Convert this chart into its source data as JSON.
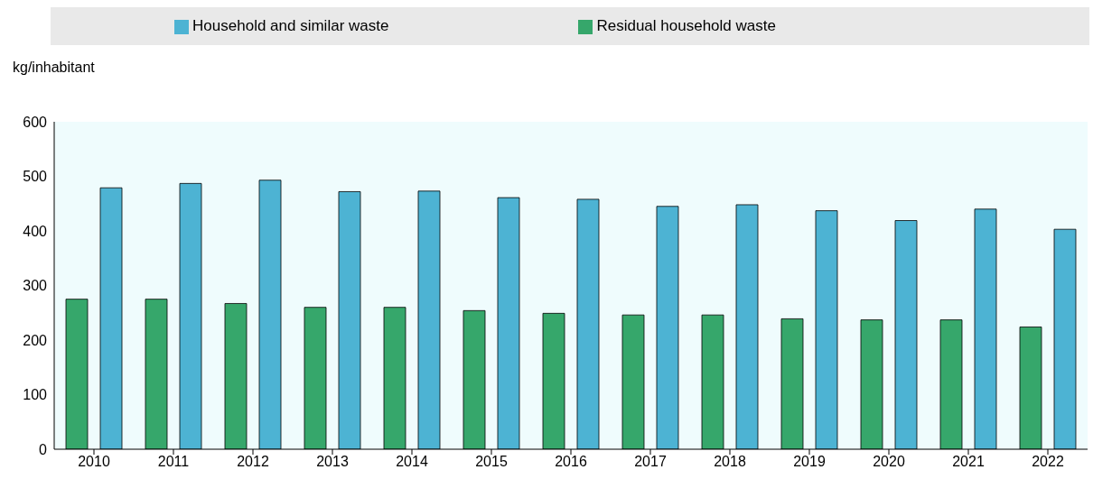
{
  "chart_data": {
    "type": "bar",
    "ylabel": "kg/inhabitant",
    "categories": [
      "2010",
      "2011",
      "2012",
      "2013",
      "2014",
      "2015",
      "2016",
      "2017",
      "2018",
      "2019",
      "2020",
      "2021",
      "2022"
    ],
    "series": [
      {
        "name": "Residual household waste",
        "color": "#36a76b",
        "values": [
          275,
          275,
          267,
          260,
          260,
          254,
          249,
          246,
          246,
          239,
          237,
          237,
          224
        ]
      },
      {
        "name": "Household and similar waste",
        "color": "#4db3d3",
        "values": [
          479,
          487,
          493,
          472,
          473,
          461,
          458,
          445,
          448,
          437,
          419,
          440,
          403
        ]
      }
    ],
    "ylim": [
      0,
      600
    ],
    "yticks": [
      0,
      100,
      200,
      300,
      400,
      500,
      600
    ],
    "legend": "top",
    "grid": false
  }
}
